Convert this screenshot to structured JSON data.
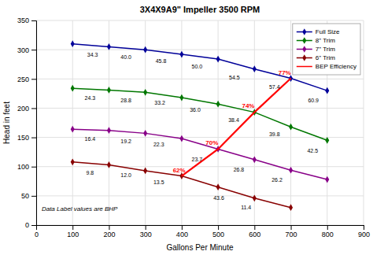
{
  "chart_data": {
    "type": "line",
    "title": "3X4X9A9\" Impeller 3500 RPM",
    "x_label": "Gallons Per Minute",
    "y_label": "Head in feet",
    "xlim": [
      0,
      900
    ],
    "ylim": [
      0,
      350
    ],
    "xticks": [
      0,
      100,
      200,
      300,
      400,
      500,
      600,
      700,
      800,
      900
    ],
    "yticks": [
      0,
      50,
      100,
      150,
      200,
      250,
      300,
      350
    ],
    "grid": true,
    "legend": "upper right",
    "annotations": [
      {
        "text": "Data Label values are BHP",
        "x": 15,
        "y": 22
      }
    ],
    "series": [
      {
        "name": "Full Size",
        "color": "#000099",
        "marker": "diamond",
        "x": [
          100,
          200,
          300,
          400,
          500,
          600,
          700,
          800
        ],
        "values": [
          310,
          305,
          300,
          292,
          284,
          267,
          251,
          230
        ],
        "annotations": [
          {
            "text": "34.3",
            "x": 155,
            "y": 297
          },
          {
            "text": "40.0",
            "x": 247,
            "y": 292
          },
          {
            "text": "45.8",
            "x": 343,
            "y": 286
          },
          {
            "text": "50.0",
            "x": 442,
            "y": 276
          },
          {
            "text": "54.5",
            "x": 545,
            "y": 258
          },
          {
            "text": "57.4",
            "x": 655,
            "y": 241
          },
          {
            "text": "60.9",
            "x": 762,
            "y": 218
          }
        ]
      },
      {
        "name": "8\" Trim",
        "color": "#007700",
        "marker": "diamond",
        "x": [
          100,
          200,
          300,
          400,
          500,
          600,
          700,
          800
        ],
        "values": [
          234,
          231,
          227,
          218,
          207,
          193,
          168,
          145
        ],
        "annotations": [
          {
            "text": "24.3",
            "x": 148,
            "y": 222
          },
          {
            "text": "28.8",
            "x": 247,
            "y": 219
          },
          {
            "text": "33.2",
            "x": 340,
            "y": 214
          },
          {
            "text": "36.0",
            "x": 437,
            "y": 202
          },
          {
            "text": "38.4",
            "x": 543,
            "y": 185
          },
          {
            "text": "39.8",
            "x": 655,
            "y": 160
          },
          {
            "text": "42.5",
            "x": 760,
            "y": 133
          }
        ]
      },
      {
        "name": "7\" Trim",
        "color": "#880088",
        "marker": "diamond",
        "x": [
          100,
          200,
          300,
          400,
          500,
          600,
          700,
          800
        ],
        "values": [
          164,
          162,
          157,
          148,
          130,
          112,
          94,
          78
        ],
        "annotations": [
          {
            "text": "16.4",
            "x": 148,
            "y": 152
          },
          {
            "text": "19.2",
            "x": 247,
            "y": 149
          },
          {
            "text": "22.3",
            "x": 337,
            "y": 143
          },
          {
            "text": "23.7",
            "x": 442,
            "y": 118
          },
          {
            "text": "26.8",
            "x": 557,
            "y": 100
          },
          {
            "text": "26.2",
            "x": 662,
            "y": 82
          }
        ]
      },
      {
        "name": "6\" Trim",
        "color": "#880000",
        "marker": "diamond",
        "x": [
          100,
          200,
          300,
          400,
          500,
          600,
          700
        ],
        "values": [
          108,
          103,
          93,
          84,
          65,
          46,
          30
        ],
        "annotations": [
          {
            "text": "9.8",
            "x": 148,
            "y": 94
          },
          {
            "text": "12.0",
            "x": 247,
            "y": 90
          },
          {
            "text": "13.5",
            "x": 337,
            "y": 78
          },
          {
            "text": "43.6",
            "x": 502,
            "y": 52
          },
          {
            "text": "11.4",
            "x": 577,
            "y": 35
          }
        ]
      },
      {
        "name": "BEP Efficiency",
        "color": "#FF0000",
        "x": [
          400,
          500,
          600,
          700
        ],
        "values": [
          84,
          130,
          193,
          251
        ],
        "annotations": [
          {
            "text": "62%",
            "x": 393,
            "y": 88
          },
          {
            "text": "70%",
            "x": 483,
            "y": 135
          },
          {
            "text": "74%",
            "x": 583,
            "y": 198
          },
          {
            "text": "77%",
            "x": 683,
            "y": 255
          }
        ]
      }
    ]
  }
}
